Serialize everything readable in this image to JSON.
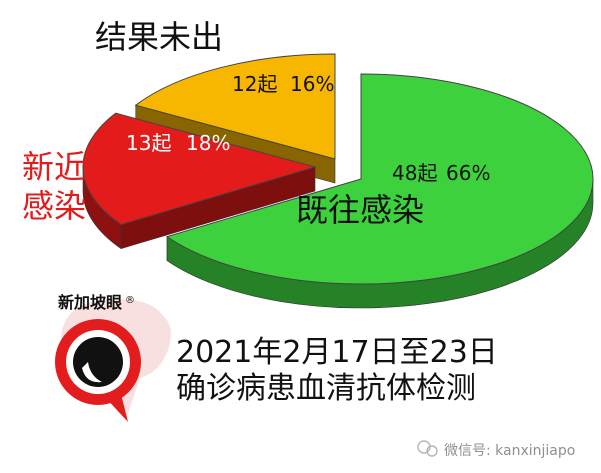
{
  "chart_data": {
    "type": "pie",
    "style": "3d-exploded",
    "slices": [
      {
        "name": "既往感染",
        "count_label": "48起",
        "count": 48,
        "percent": 66,
        "percent_label": "66%",
        "color": "#3dd23d"
      },
      {
        "name": "新近感染",
        "count_label": "13起",
        "count": 13,
        "percent": 18,
        "percent_label": "18%",
        "color": "#e31b1b"
      },
      {
        "name": "结果未出",
        "count_label": "12起",
        "count": 12,
        "percent": 16,
        "percent_label": "16%",
        "color": "#f7b700"
      }
    ],
    "outside_labels": {
      "pending": "结果未出",
      "recent_line1": "新近",
      "recent_line2": "感染"
    },
    "inside_label_past": "既往感染",
    "caption_line1": "2021年2月17日至23日",
    "caption_line2": "确诊病患血清抗体检测"
  },
  "logo": {
    "text": "新加坡眼",
    "registered_mark": "®",
    "red": "#e31d1d"
  },
  "watermark": {
    "text": "微信号: kanxinjiapo"
  }
}
